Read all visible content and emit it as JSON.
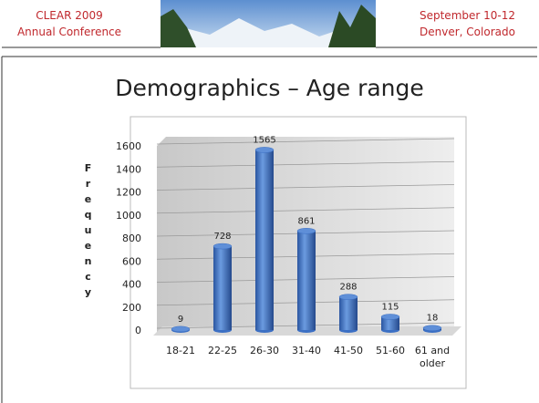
{
  "header": {
    "left_line1": "CLEAR 2009",
    "left_line2": "Annual Conference",
    "right_line1": "September 10-12",
    "right_line2": "Denver, Colorado"
  },
  "chart_data": {
    "type": "bar",
    "title": "Demographics – Age range",
    "y_label": "Frequency",
    "categories": [
      "18-21",
      "22-25",
      "26-30",
      "31-40",
      "41-50",
      "51-60",
      "61 and older"
    ],
    "values": [
      9,
      728,
      1565,
      861,
      288,
      115,
      18
    ],
    "color": "#3b6fc4",
    "ylim": [
      0,
      1600
    ],
    "yticks": [
      0,
      200,
      400,
      600,
      800,
      1000,
      1200,
      1400,
      1600
    ],
    "grid": true
  }
}
